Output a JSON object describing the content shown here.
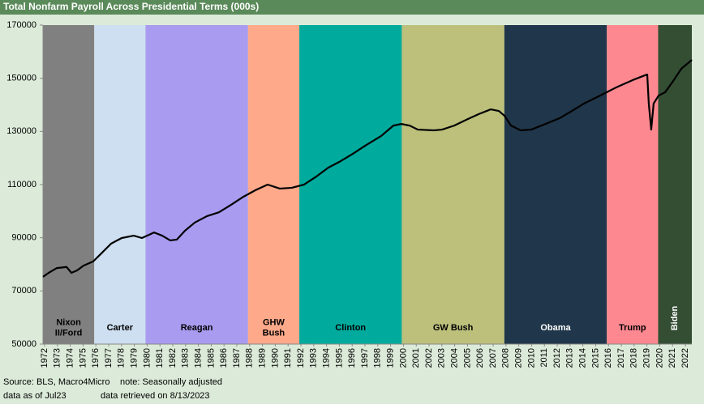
{
  "chart_data": {
    "type": "line",
    "title": "Total Nonfarm Payroll Across Presidential Terms (000s)",
    "footer": [
      "Source: BLS, Macro4Micro",
      "note: Seasonally adjusted",
      "data as of Jul23",
      "data retrieved on 8/13/2023"
    ],
    "xlim": [
      1972,
      2022.63
    ],
    "xticks": [
      1972,
      1973,
      1974,
      1975,
      1976,
      1977,
      1978,
      1979,
      1980,
      1981,
      1982,
      1983,
      1984,
      1985,
      1986,
      1987,
      1988,
      1989,
      1990,
      1991,
      1992,
      1993,
      1994,
      1995,
      1996,
      1997,
      1998,
      1999,
      2000,
      2001,
      2002,
      2003,
      2004,
      2005,
      2006,
      2007,
      2008,
      2009,
      2010,
      2011,
      2012,
      2013,
      2014,
      2015,
      2016,
      2017,
      2018,
      2019,
      2020,
      2021,
      2022
    ],
    "ylim": [
      50000,
      170000
    ],
    "yticks": [
      50000,
      70000,
      90000,
      110000,
      130000,
      150000,
      170000
    ],
    "terms": [
      {
        "label": [
          "Nixon",
          "II/Ford"
        ],
        "start": 1972,
        "end": 1976,
        "color": "#808080",
        "text_color": "#000000"
      },
      {
        "label": [
          "Carter"
        ],
        "start": 1976,
        "end": 1980,
        "color": "#cddff0",
        "text_color": "#000000"
      },
      {
        "label": [
          "Reagan"
        ],
        "start": 1980,
        "end": 1988,
        "color": "#a99cf0",
        "text_color": "#000000"
      },
      {
        "label": [
          "GHW",
          "Bush"
        ],
        "start": 1988,
        "end": 1992,
        "color": "#fda98a",
        "text_color": "#000000"
      },
      {
        "label": [
          "Clinton"
        ],
        "start": 1992,
        "end": 2000,
        "color": "#00ab9e",
        "text_color": "#000000"
      },
      {
        "label": [
          "GW Bush"
        ],
        "start": 2000,
        "end": 2008,
        "color": "#bcc07b",
        "text_color": "#000000"
      },
      {
        "label": [
          "Obama"
        ],
        "start": 2008,
        "end": 2016,
        "color": "#20364a",
        "text_color": "#ffffff"
      },
      {
        "label": [
          "Trump"
        ],
        "start": 2016,
        "end": 2020,
        "color": "#fd8890",
        "text_color": "#000000"
      },
      {
        "label": [
          "Biden"
        ],
        "start": 2020,
        "end": 2022.63,
        "color": "#344e33",
        "text_color": "#ffffff",
        "rotated": true
      }
    ],
    "series": [
      {
        "color": "#000000",
        "x": [
          1972.0,
          1972.44,
          1973.08,
          1973.84,
          1974.22,
          1974.66,
          1975.16,
          1975.92,
          1976.55,
          1977.32,
          1978.14,
          1979.08,
          1979.72,
          1980.67,
          1981.3,
          1981.93,
          1982.44,
          1983.07,
          1983.84,
          1984.78,
          1985.73,
          1986.68,
          1987.63,
          1988.58,
          1989.53,
          1990.48,
          1991.42,
          1992.37,
          1993.32,
          1994.27,
          1995.22,
          1996.18,
          1997.13,
          1998.39,
          1999.34,
          1999.97,
          2000.61,
          2001.24,
          2002.51,
          2003.14,
          2004.09,
          2005.04,
          2005.99,
          2006.94,
          2007.57,
          2008.01,
          2008.52,
          2009.28,
          2010.1,
          2011.05,
          2012.32,
          2013.27,
          2014.22,
          2015.48,
          2016.75,
          2018.01,
          2018.96,
          2019.15,
          2019.27,
          2019.46,
          2019.65,
          2020.04,
          2020.54,
          2021.18,
          2021.81,
          2022.63
        ],
        "values": [
          75300,
          76800,
          78600,
          79000,
          76800,
          77700,
          79500,
          81100,
          84100,
          87800,
          89900,
          90800,
          89900,
          92000,
          90800,
          89000,
          89300,
          92600,
          95700,
          98100,
          99600,
          102400,
          105400,
          107900,
          110000,
          108500,
          108800,
          110000,
          113000,
          116400,
          118800,
          121600,
          124600,
          128300,
          132200,
          132800,
          132200,
          130700,
          130400,
          130700,
          132200,
          134400,
          136500,
          138300,
          137700,
          135900,
          132200,
          130400,
          130700,
          132500,
          135000,
          137700,
          140500,
          143500,
          146600,
          149300,
          151100,
          151400,
          140500,
          130700,
          140500,
          143500,
          144700,
          149000,
          153600,
          156900
        ]
      }
    ]
  }
}
